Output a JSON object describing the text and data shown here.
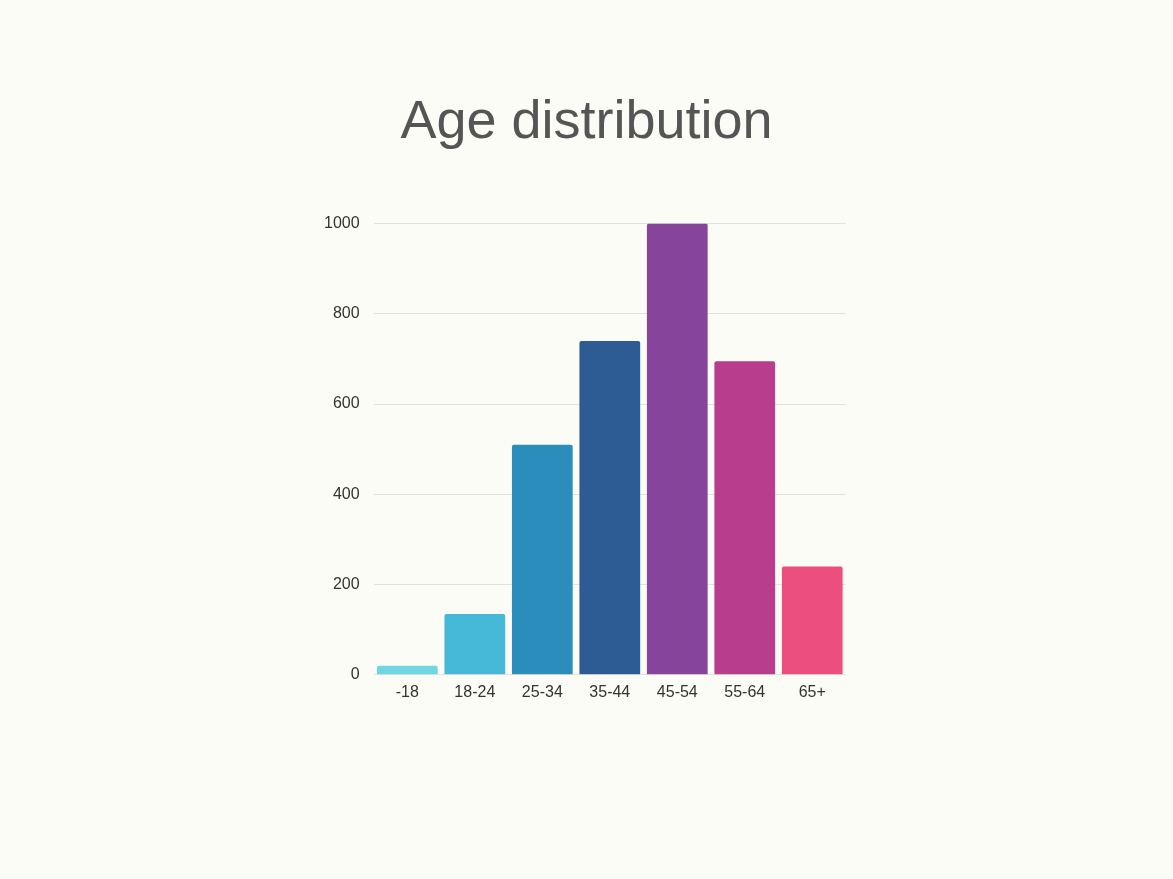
{
  "chart_data": {
    "type": "bar",
    "title": "Age distribution",
    "categories": [
      "-18",
      "18-24",
      "25-34",
      "35-44",
      "45-54",
      "55-64",
      "65+"
    ],
    "values": [
      20,
      135,
      510,
      740,
      1000,
      695,
      240
    ],
    "colors": [
      "#70d6e2",
      "#45b9d7",
      "#2b8dbc",
      "#2d5b94",
      "#86459b",
      "#b93d8d",
      "#ec4e80"
    ],
    "ylim": [
      0,
      1000
    ],
    "yticks": [
      0,
      200,
      400,
      600,
      800,
      1000
    ],
    "grid": "y",
    "legend": false
  }
}
